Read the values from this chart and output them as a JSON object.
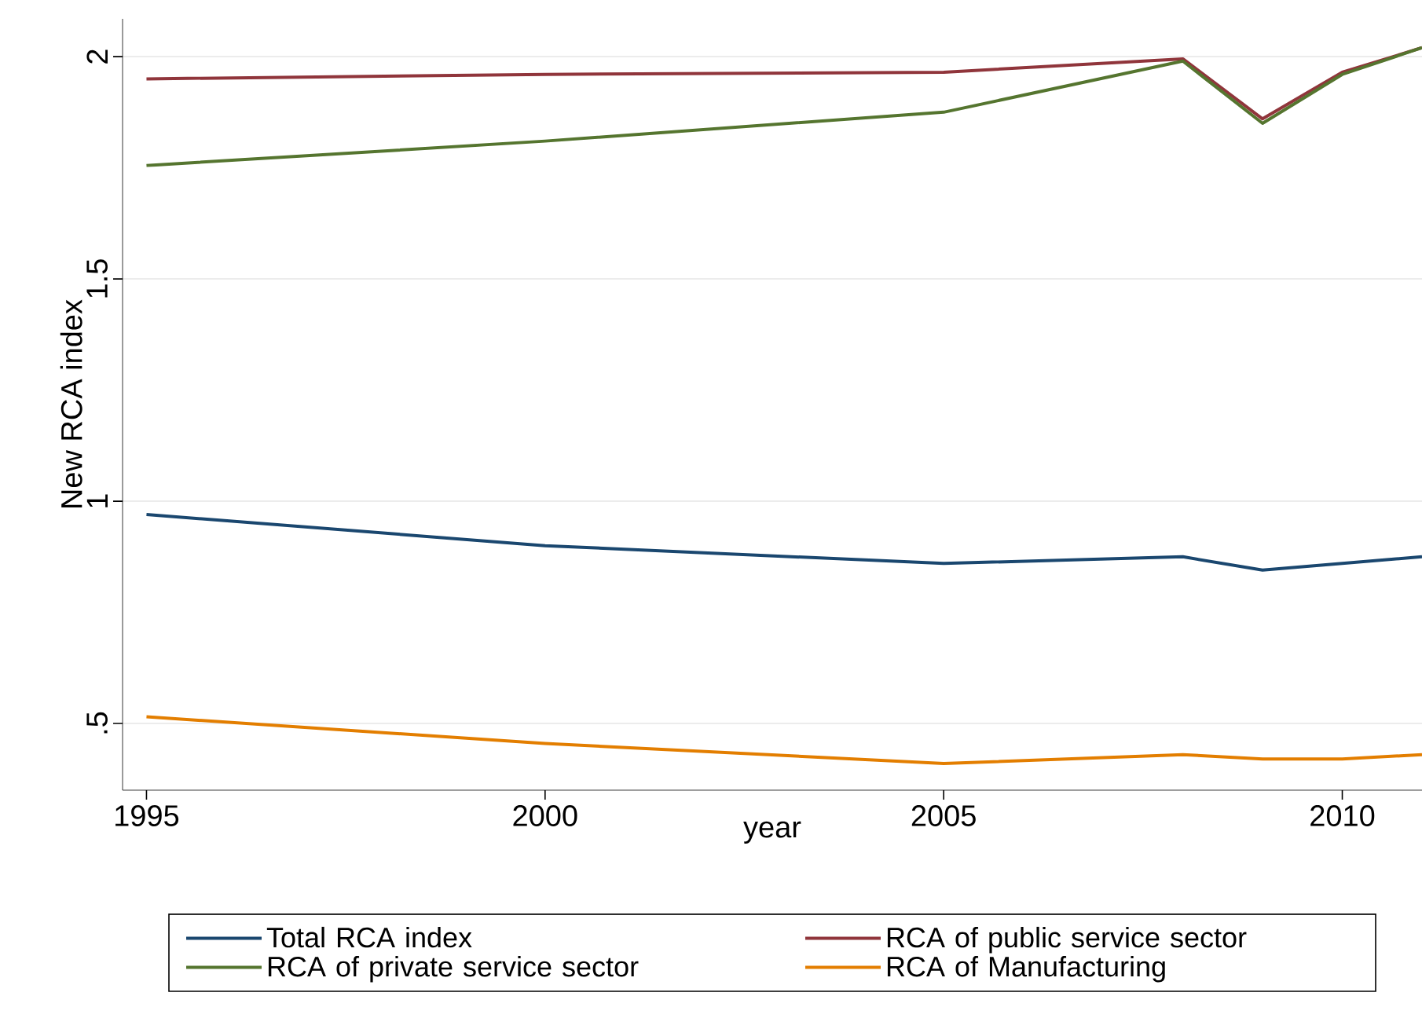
{
  "chart_data": {
    "type": "line",
    "xlabel": "year",
    "ylabel": "New RCA index",
    "x": [
      1995,
      2000,
      2005,
      2008,
      2009,
      2010,
      2011
    ],
    "series": [
      {
        "name": "Total RCA index",
        "color": "#1a476f",
        "values": [
          0.97,
          0.9,
          0.86,
          0.875,
          0.845,
          0.86,
          0.875
        ]
      },
      {
        "name": "RCA of public service sector",
        "color": "#90353b",
        "values": [
          1.95,
          1.96,
          1.965,
          1.995,
          1.86,
          1.965,
          2.02
        ]
      },
      {
        "name": "RCA of private service sector",
        "color": "#55752f",
        "values": [
          1.755,
          1.81,
          1.875,
          1.99,
          1.85,
          1.96,
          2.02
        ]
      },
      {
        "name": "RCA of Manufacturing",
        "color": "#e37e00",
        "values": [
          0.515,
          0.455,
          0.41,
          0.43,
          0.42,
          0.42,
          0.43
        ]
      }
    ],
    "xlim": [
      1994.7,
      2011
    ],
    "ylim": [
      0.35,
      2.085
    ],
    "xticks": [
      1995,
      2000,
      2005,
      2010
    ],
    "yticks": [
      {
        "value": 0.5,
        "label": ".5"
      },
      1,
      1.5,
      2
    ],
    "grid": "y",
    "legend": "bottom",
    "marker": "none",
    "line_style": "solid"
  }
}
